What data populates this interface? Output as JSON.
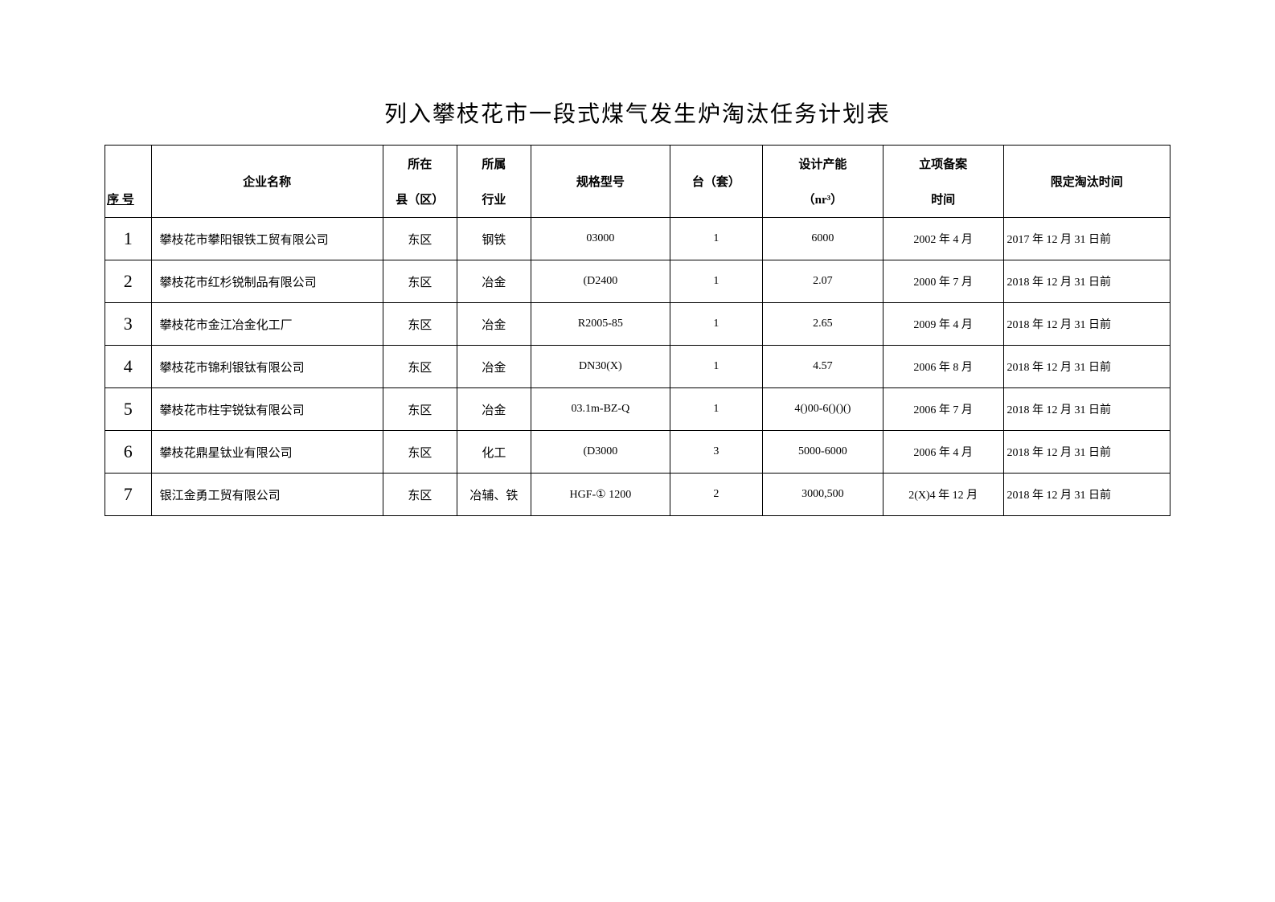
{
  "title": "列入攀枝花市一段式煤气发生炉淘汰任务计划表",
  "headers": {
    "seq_top": "",
    "seq_bottom": "序 号",
    "company": "企业名称",
    "county_top": "所在",
    "county_bottom": "县（区）",
    "industry_top": "所属",
    "industry_bottom": "行业",
    "spec": "规格型号",
    "units": "台（套）",
    "capacity_top": "设计产能",
    "capacity_bottom": "（nr³）",
    "filing_top": "立项备案",
    "filing_bottom": "时间",
    "deadline": "限定淘汰时间"
  },
  "rows": [
    {
      "seq": "1",
      "company": "攀枝花市攀阳银铁工贸有限公司",
      "county": "东区",
      "industry": "钢铁",
      "spec": "03000",
      "units": "1",
      "capacity": "6000",
      "filing": "2002 年 4 月",
      "deadline": "2017 年 12 月 31 日前"
    },
    {
      "seq": "2",
      "company": "攀枝花市红杉锐制品有限公司",
      "county": "东区",
      "industry": "冶金",
      "spec": "(D2400",
      "units": "1",
      "capacity": "2.07",
      "filing": "2000 年 7 月",
      "deadline": "2018 年 12 月 31 日前"
    },
    {
      "seq": "3",
      "company": "攀枝花市金江冶金化工厂",
      "county": "东区",
      "industry": "冶金",
      "spec": "R2005-85",
      "units": "1",
      "capacity": "2.65",
      "filing": "2009 年 4 月",
      "deadline": "2018 年 12 月 31 日前"
    },
    {
      "seq": "4",
      "company": "攀枝花市锦利银钛有限公司",
      "county": "东区",
      "industry": "冶金",
      "spec": "DN30(X)",
      "units": "1",
      "capacity": "4.57",
      "filing": "2006 年 8 月",
      "deadline": "2018 年 12 月 31 日前"
    },
    {
      "seq": "5",
      "company": "攀枝花市柱宇锐钛有限公司",
      "county": "东区",
      "industry": "冶金",
      "spec": "03.1m-BZ-Q",
      "units": "1",
      "capacity": "4()00-6()()()",
      "filing": "2006 年 7 月",
      "deadline": "2018 年 12 月 31 日前"
    },
    {
      "seq": "6",
      "company": "攀枝花鼎星钛业有限公司",
      "county": "东区",
      "industry": "化工",
      "spec": "(D3000",
      "units": "3",
      "capacity": "5000-6000",
      "filing": "2006 年 4 月",
      "deadline": "2018 年 12 月 31 日前"
    },
    {
      "seq": "7",
      "company": "银江金勇工贸有限公司",
      "county": "东区",
      "industry": "冶辅、铁",
      "spec": "HGF-① 1200",
      "units": "2",
      "capacity": "3000,500",
      "filing": "2(X)4 年 12 月",
      "deadline": "2018 年 12 月 31 日前"
    }
  ]
}
